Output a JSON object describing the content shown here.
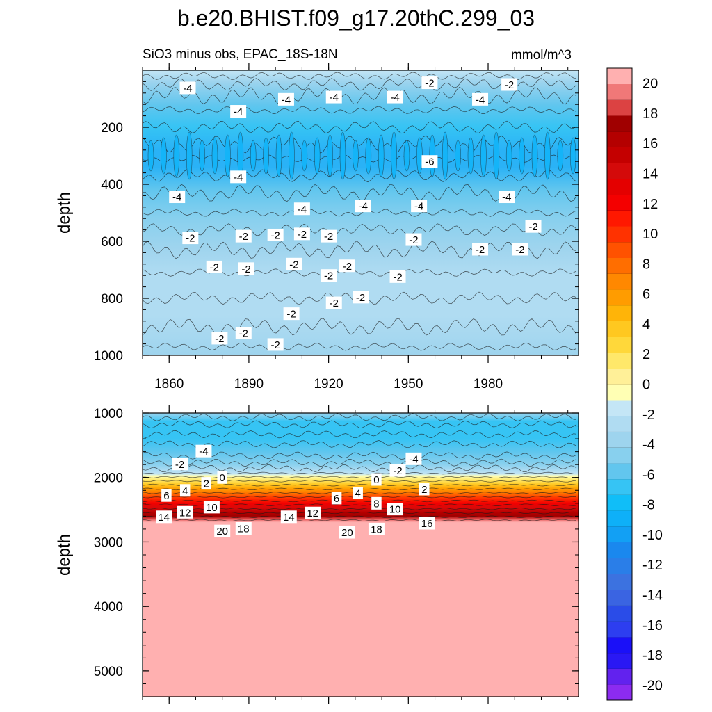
{
  "chart_data": {
    "type": "heatmap",
    "title": "b.e20.BHIST.f09_g17.20thC.299_03",
    "subtitle_left": "SiO3 minus obs, EPAC_18S-18N",
    "subtitle_right": "mmol/m^3",
    "x_range": [
      1850,
      2014
    ],
    "x_ticks": [
      "1860",
      "1890",
      "1920",
      "1950",
      "1980"
    ],
    "x_tick_values": [
      1860,
      1890,
      1920,
      1950,
      1980
    ],
    "panels": [
      {
        "ylabel": "depth",
        "ylim": [
          0,
          1000
        ],
        "y_ticks": [
          "200",
          "400",
          "600",
          "800",
          "1000"
        ],
        "y_tick_values": [
          200,
          400,
          600,
          800,
          1000
        ],
        "contour_labels": [
          {
            "text": "-4",
            "year": 1867,
            "depth": 62
          },
          {
            "text": "-4",
            "year": 1886,
            "depth": 144
          },
          {
            "text": "-4",
            "year": 1904,
            "depth": 102
          },
          {
            "text": "-4",
            "year": 1922,
            "depth": 94
          },
          {
            "text": "-4",
            "year": 1945,
            "depth": 94
          },
          {
            "text": "-2",
            "year": 1958,
            "depth": 44
          },
          {
            "text": "-4",
            "year": 1977,
            "depth": 102
          },
          {
            "text": "-2",
            "year": 1988,
            "depth": 50
          },
          {
            "text": "-6",
            "year": 1958,
            "depth": 320
          },
          {
            "text": "-4",
            "year": 1863,
            "depth": 444
          },
          {
            "text": "-4",
            "year": 1886,
            "depth": 374
          },
          {
            "text": "-4",
            "year": 1910,
            "depth": 486
          },
          {
            "text": "-4",
            "year": 1933,
            "depth": 476
          },
          {
            "text": "-4",
            "year": 1954,
            "depth": 476
          },
          {
            "text": "-4",
            "year": 1987,
            "depth": 444
          },
          {
            "text": "-2",
            "year": 1868,
            "depth": 588
          },
          {
            "text": "-2",
            "year": 1877,
            "depth": 690
          },
          {
            "text": "-2",
            "year": 1879,
            "depth": 940
          },
          {
            "text": "-2",
            "year": 1888,
            "depth": 582
          },
          {
            "text": "-2",
            "year": 1889,
            "depth": 696
          },
          {
            "text": "-2",
            "year": 1888,
            "depth": 922
          },
          {
            "text": "-2",
            "year": 1900,
            "depth": 578
          },
          {
            "text": "-2",
            "year": 1907,
            "depth": 680
          },
          {
            "text": "-2",
            "year": 1900,
            "depth": 962
          },
          {
            "text": "-2",
            "year": 1910,
            "depth": 574
          },
          {
            "text": "-2",
            "year": 1906,
            "depth": 854
          },
          {
            "text": "-2",
            "year": 1920,
            "depth": 582
          },
          {
            "text": "-2",
            "year": 1920,
            "depth": 720
          },
          {
            "text": "-2",
            "year": 1927,
            "depth": 686
          },
          {
            "text": "-2",
            "year": 1922,
            "depth": 816
          },
          {
            "text": "-2",
            "year": 1932,
            "depth": 796
          },
          {
            "text": "-2",
            "year": 1946,
            "depth": 724
          },
          {
            "text": "-2",
            "year": 1952,
            "depth": 594
          },
          {
            "text": "-2",
            "year": 1977,
            "depth": 628
          },
          {
            "text": "-2",
            "year": 1992,
            "depth": 628
          },
          {
            "text": "-2",
            "year": 1997,
            "depth": 548
          }
        ]
      },
      {
        "ylabel": "depth",
        "ylim": [
          1000,
          5400
        ],
        "y_ticks": [
          "1000",
          "2000",
          "3000",
          "4000",
          "5000"
        ],
        "y_tick_values": [
          1000,
          2000,
          3000,
          4000,
          5000
        ],
        "contour_labels": [
          {
            "text": "-4",
            "year": 1873,
            "depth": 1590
          },
          {
            "text": "-2",
            "year": 1864,
            "depth": 1790
          },
          {
            "text": "2",
            "year": 1874,
            "depth": 2090
          },
          {
            "text": "0",
            "year": 1880,
            "depth": 2000
          },
          {
            "text": "4",
            "year": 1866,
            "depth": 2200
          },
          {
            "text": "6",
            "year": 1859,
            "depth": 2280
          },
          {
            "text": "10",
            "year": 1876,
            "depth": 2460
          },
          {
            "text": "12",
            "year": 1866,
            "depth": 2540
          },
          {
            "text": "14",
            "year": 1858,
            "depth": 2610
          },
          {
            "text": "20",
            "year": 1880,
            "depth": 2830
          },
          {
            "text": "18",
            "year": 1888,
            "depth": 2790
          },
          {
            "text": "14",
            "year": 1905,
            "depth": 2610
          },
          {
            "text": "12",
            "year": 1914,
            "depth": 2550
          },
          {
            "text": "6",
            "year": 1923,
            "depth": 2320
          },
          {
            "text": "4",
            "year": 1931,
            "depth": 2240
          },
          {
            "text": "0",
            "year": 1938,
            "depth": 2030
          },
          {
            "text": "-2",
            "year": 1946,
            "depth": 1890
          },
          {
            "text": "-4",
            "year": 1952,
            "depth": 1710
          },
          {
            "text": "8",
            "year": 1938,
            "depth": 2400
          },
          {
            "text": "10",
            "year": 1945,
            "depth": 2490
          },
          {
            "text": "2",
            "year": 1956,
            "depth": 2180
          },
          {
            "text": "16",
            "year": 1957,
            "depth": 2710
          },
          {
            "text": "20",
            "year": 1927,
            "depth": 2850
          },
          {
            "text": "18",
            "year": 1938,
            "depth": 2800
          }
        ]
      }
    ],
    "colorbar": {
      "levels": [
        -21,
        -20,
        -19,
        -18,
        -17,
        -16,
        -15,
        -14,
        -13,
        -12,
        -11,
        -10,
        -9,
        -8,
        -7,
        -6,
        -5,
        -4,
        -3,
        -2,
        -1,
        0,
        1,
        2,
        3,
        4,
        5,
        6,
        7,
        8,
        9,
        10,
        11,
        12,
        13,
        14,
        15,
        16,
        17,
        18,
        19,
        20,
        21
      ],
      "colors": [
        "#8c2bf0",
        "#6222ee",
        "#2a18f4",
        "#1a10f8",
        "#2d3ef0",
        "#2a4ce8",
        "#3a64e2",
        "#3c72e0",
        "#2a7ee8",
        "#1a88ee",
        "#12a0f4",
        "#0eb0f8",
        "#10bef8",
        "#36c4f4",
        "#62c6ee",
        "#88d0ee",
        "#9ed4ee",
        "#b0dcf2",
        "#c4e6f6",
        "#ffffb4",
        "#fff098",
        "#ffe86a",
        "#ffd83a",
        "#ffc820",
        "#ffb408",
        "#ff9c00",
        "#ff8800",
        "#ff6e00",
        "#ff5200",
        "#ff3200",
        "#ff1800",
        "#f40000",
        "#e40000",
        "#d40a0a",
        "#c40000",
        "#b40000",
        "#a00000",
        "#dc4242",
        "#f07878",
        "#ffb0b0"
      ],
      "labels": [
        "20",
        "18",
        "16",
        "14",
        "12",
        "10",
        "8",
        "6",
        "4",
        "2",
        "0",
        "-2",
        "-4",
        "-6",
        "-8",
        "-10",
        "-12",
        "-14",
        "-16",
        "-18",
        "-20"
      ],
      "label_values": [
        20,
        18,
        16,
        14,
        12,
        10,
        8,
        6,
        4,
        2,
        0,
        -2,
        -4,
        -6,
        -8,
        -10,
        -12,
        -14,
        -16,
        -18,
        -20
      ]
    }
  }
}
